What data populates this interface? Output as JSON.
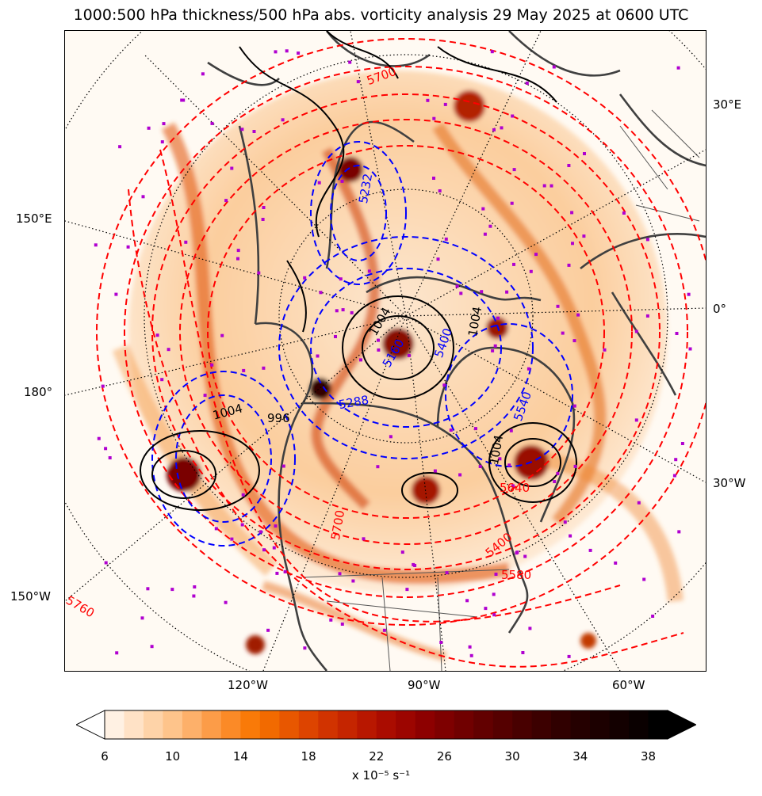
{
  "title": "1000:500 hPa thickness/500 hPa abs. vorticity analysis 29 May 2025 at 0600 UTC",
  "graticule_labels": {
    "bottom": [
      "120°W",
      "90°W",
      "60°W"
    ],
    "left": [
      "150°E",
      "180°",
      "150°W"
    ],
    "right": [
      "30°E",
      "0°",
      "30°W"
    ]
  },
  "contour_labels": {
    "thickness_red": [
      "5700",
      "5400",
      "5580",
      "5760",
      "5700",
      "5640"
    ],
    "thickness_blue": [
      "5288",
      "5540",
      "5160",
      "5232",
      "5400"
    ],
    "mslp_black": [
      "1004",
      "1004",
      "996",
      "1004",
      "1004"
    ]
  },
  "colorbar": {
    "units": "x 10⁻⁵ s⁻¹",
    "ticks": [
      "6",
      "10",
      "14",
      "18",
      "22",
      "26",
      "30",
      "34",
      "38"
    ],
    "colors": [
      "#fff1e3",
      "#ffe2c6",
      "#fed3a8",
      "#fec48b",
      "#fdb06a",
      "#fc9c48",
      "#fb8a27",
      "#f97a08",
      "#f26a00",
      "#e85700",
      "#dd4400",
      "#d13300",
      "#c52500",
      "#b81700",
      "#aa0c00",
      "#9c0500",
      "#8d0000",
      "#7e0000",
      "#700000",
      "#620000",
      "#550000",
      "#480000",
      "#3c0000",
      "#300000",
      "#250000",
      "#1c0000",
      "#130000",
      "#0a0000",
      "#000000"
    ],
    "under_color": "#ffffff",
    "over_color": "#000000"
  }
}
